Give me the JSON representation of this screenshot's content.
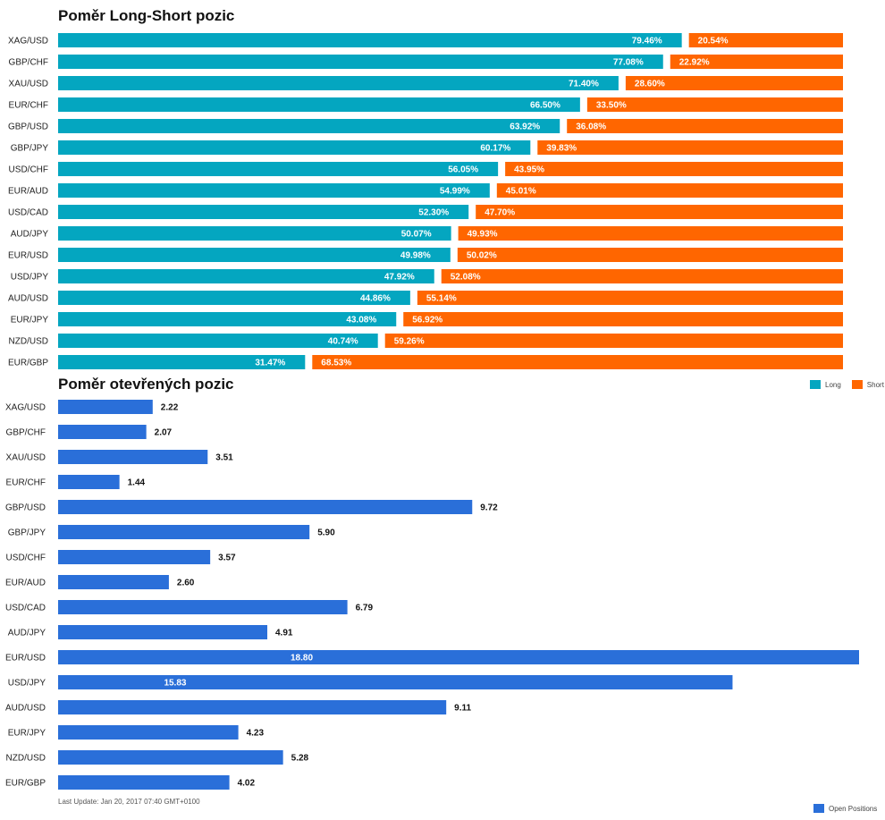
{
  "colors": {
    "long": "#04A6C0",
    "short": "#FF6600",
    "open": "#2A6FD9"
  },
  "legend": {
    "long": "Long",
    "short": "Short",
    "open": "Open Positions"
  },
  "footer": "Last Update: Jan 20, 2017 07:40 GMT+0100",
  "chart_data": [
    {
      "type": "bar",
      "stacked": true,
      "orientation": "horizontal",
      "title": "Poměr Long-Short pozic",
      "categories": [
        "XAG/USD",
        "GBP/CHF",
        "XAU/USD",
        "EUR/CHF",
        "GBP/USD",
        "GBP/JPY",
        "USD/CHF",
        "EUR/AUD",
        "USD/CAD",
        "AUD/JPY",
        "EUR/USD",
        "USD/JPY",
        "AUD/USD",
        "EUR/JPY",
        "NZD/USD",
        "EUR/GBP"
      ],
      "series": [
        {
          "name": "Long",
          "values": [
            79.46,
            77.08,
            71.4,
            66.5,
            63.92,
            60.17,
            56.05,
            54.99,
            52.3,
            50.07,
            49.98,
            47.92,
            44.86,
            43.08,
            40.74,
            31.47
          ],
          "labels": [
            "79.46%",
            "77.08%",
            "71.40%",
            "66.50%",
            "63.92%",
            "60.17%",
            "56.05%",
            "54.99%",
            "52.30%",
            "50.07%",
            "49.98%",
            "47.92%",
            "44.86%",
            "43.08%",
            "40.74%",
            "31.47%"
          ]
        },
        {
          "name": "Short",
          "values": [
            20.54,
            22.92,
            28.6,
            33.5,
            36.08,
            39.83,
            43.95,
            45.01,
            47.7,
            49.93,
            50.02,
            52.08,
            55.14,
            56.92,
            59.26,
            68.53
          ],
          "labels": [
            "20.54%",
            "22.92%",
            "28.60%",
            "33.50%",
            "36.08%",
            "39.83%",
            "43.95%",
            "45.01%",
            "47.70%",
            "49.93%",
            "50.02%",
            "52.08%",
            "55.14%",
            "56.92%",
            "59.26%",
            "68.53%"
          ]
        }
      ],
      "xlim": [
        0,
        100
      ],
      "legend_position": "bottom-right"
    },
    {
      "type": "bar",
      "orientation": "horizontal",
      "title": "Poměr otevřených pozic",
      "categories": [
        "XAG/USD",
        "GBP/CHF",
        "XAU/USD",
        "EUR/CHF",
        "GBP/USD",
        "GBP/JPY",
        "USD/CHF",
        "EUR/AUD",
        "USD/CAD",
        "AUD/JPY",
        "EUR/USD",
        "USD/JPY",
        "AUD/USD",
        "EUR/JPY",
        "NZD/USD",
        "EUR/GBP"
      ],
      "series": [
        {
          "name": "Open Positions",
          "values": [
            2.22,
            2.07,
            3.51,
            1.44,
            9.72,
            5.9,
            3.57,
            2.6,
            6.79,
            4.91,
            18.8,
            15.83,
            9.11,
            4.23,
            5.28,
            4.02
          ],
          "labels": [
            "2.22",
            "2.07",
            "3.51",
            "1.44",
            "9.72",
            "5.90",
            "3.57",
            "2.60",
            "6.79",
            "4.91",
            "18.80",
            "15.83",
            "9.11",
            "4.23",
            "5.28",
            "4.02"
          ]
        }
      ],
      "xlim": [
        0,
        18.8
      ],
      "legend_position": "bottom-right"
    }
  ]
}
